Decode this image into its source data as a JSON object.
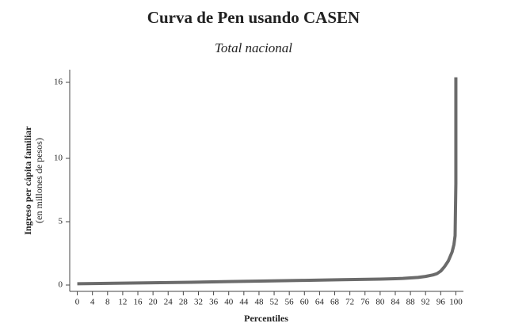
{
  "chart_data": {
    "type": "line",
    "title": "Curva de Pen usando CASEN",
    "subtitle": "Total nacional",
    "y_label": "Ingreso per cápita familiar",
    "y_label_sub": "(en millones de pesos)",
    "x_label": "Percentiles",
    "x": [
      0,
      10,
      20,
      30,
      40,
      50,
      60,
      70,
      80,
      84,
      86,
      88,
      90,
      92,
      94,
      95,
      96,
      97,
      98,
      99,
      99.5,
      99.8,
      100,
      100
    ],
    "series": [
      {
        "name": "Ingreso",
        "color": "#6b6b6b",
        "values": [
          0.1,
          0.14,
          0.18,
          0.22,
          0.27,
          0.32,
          0.37,
          0.42,
          0.47,
          0.5,
          0.52,
          0.56,
          0.6,
          0.68,
          0.8,
          0.9,
          1.1,
          1.45,
          1.9,
          2.6,
          3.2,
          3.9,
          8,
          16.4
        ]
      }
    ],
    "xlim": [
      -2,
      102
    ],
    "ylim": [
      -0.5,
      17
    ],
    "xticks": [
      0,
      4,
      8,
      12,
      16,
      20,
      24,
      28,
      32,
      36,
      40,
      44,
      48,
      52,
      56,
      60,
      64,
      68,
      72,
      76,
      80,
      84,
      88,
      92,
      96,
      100
    ],
    "yticks": [
      0,
      5,
      10,
      16
    ]
  }
}
